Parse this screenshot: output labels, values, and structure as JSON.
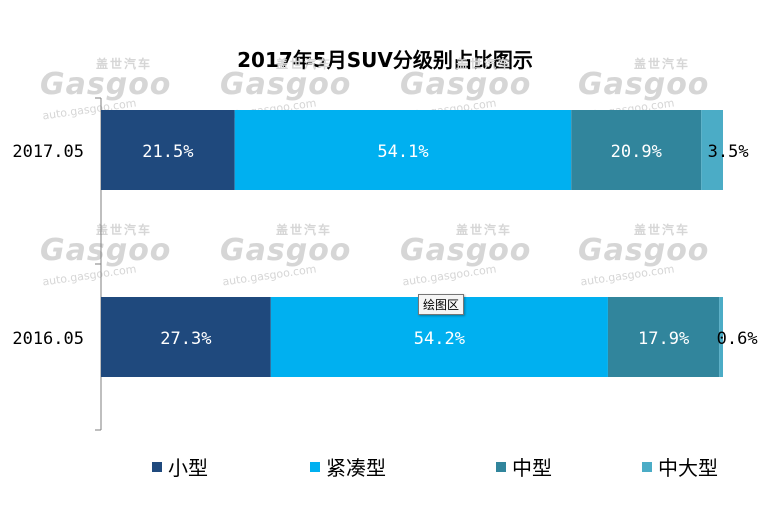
{
  "watermark": {
    "brand_cn": "盖世汽车",
    "logo": "Gasgoo",
    "url": "auto.gasgoo.com"
  },
  "tooltip": "绘图区",
  "colors": {
    "small": "#1F497D",
    "compact": "#00B0F0",
    "mid": "#31859C",
    "midlarge": "#4BACC6"
  },
  "chart_data": {
    "type": "bar",
    "orientation": "horizontal",
    "stacked": "percent",
    "title": "2017年5月SUV分级别占比图示",
    "categories": [
      "2017.05",
      "2016.05"
    ],
    "series": [
      {
        "name": "小型",
        "values": [
          21.5,
          27.3
        ],
        "labels": [
          "21.5%",
          "27.3%"
        ],
        "color": "#1F497D"
      },
      {
        "name": "紧凑型",
        "values": [
          54.1,
          54.2
        ],
        "labels": [
          "54.1%",
          "54.2%"
        ],
        "color": "#00B0F0"
      },
      {
        "name": "中型",
        "values": [
          20.9,
          17.9
        ],
        "labels": [
          "20.9%",
          "17.9%"
        ],
        "color": "#31859C"
      },
      {
        "name": "中大型",
        "values": [
          3.5,
          0.6
        ],
        "labels": [
          "3.5%",
          "0.6%"
        ],
        "color": "#4BACC6"
      }
    ],
    "xlim": [
      0,
      100
    ],
    "grid": false,
    "legend_position": "bottom"
  }
}
